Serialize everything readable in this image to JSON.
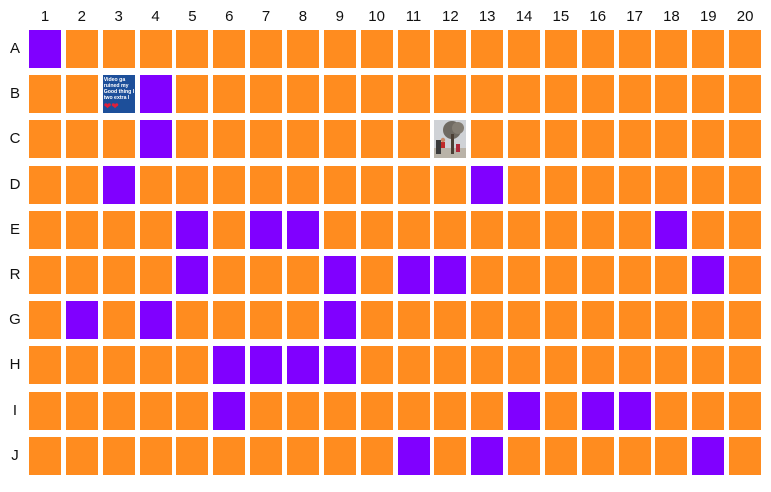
{
  "board": {
    "columns": [
      "1",
      "2",
      "3",
      "4",
      "5",
      "6",
      "7",
      "8",
      "9",
      "10",
      "11",
      "12",
      "13",
      "14",
      "15",
      "16",
      "17",
      "18",
      "19",
      "20"
    ],
    "rows": [
      "A",
      "B",
      "C",
      "D",
      "E",
      "R",
      "G",
      "H",
      "I",
      "J"
    ],
    "colors": {
      "default": "#ff8c1f",
      "selected": "#8000ff"
    },
    "selected_cells": [
      "A1",
      "B4",
      "C4",
      "D3",
      "D13",
      "E5",
      "E7",
      "E8",
      "E18",
      "R5",
      "R9",
      "R11",
      "R12",
      "R19",
      "G2",
      "G4",
      "G9",
      "H6",
      "H7",
      "H8",
      "H9",
      "I6",
      "I14",
      "I16",
      "I17",
      "J11",
      "J13",
      "J19"
    ],
    "image_cells": {
      "B3": {
        "type": "meme",
        "lines": [
          "Video ga",
          "ruined my",
          "Good thing I",
          "two extra l"
        ],
        "icon": "heart-icon"
      },
      "C12": {
        "type": "photo",
        "icon": "tree-photo"
      }
    }
  }
}
